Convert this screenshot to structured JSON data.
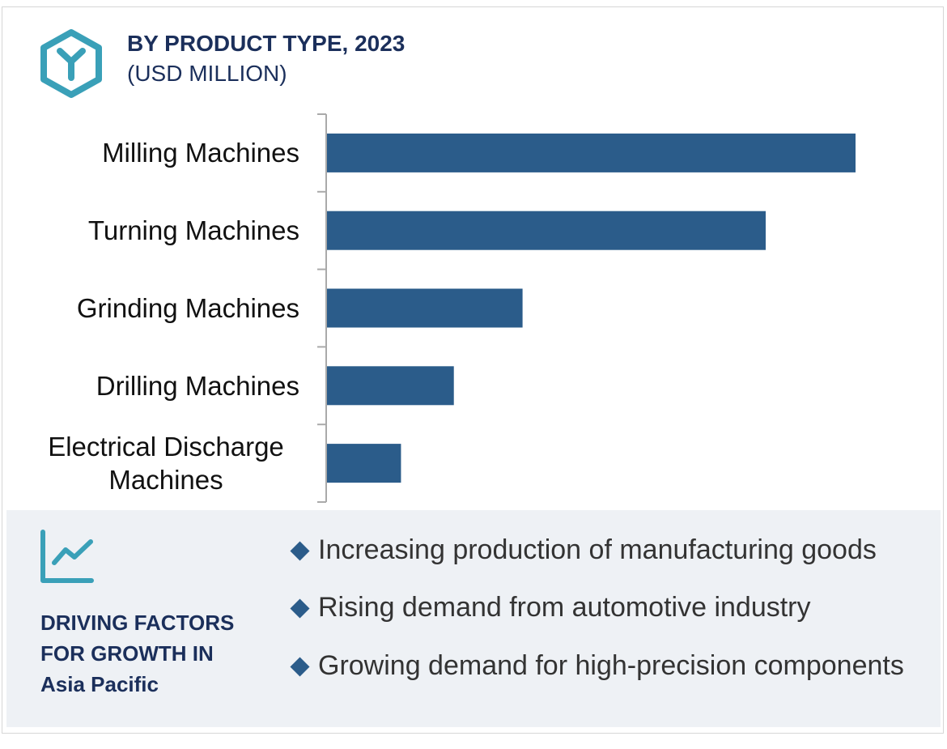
{
  "chart_data": {
    "type": "bar",
    "orientation": "horizontal",
    "title": "BY PRODUCT TYPE, 2023",
    "subtitle": "(USD MILLION)",
    "categories": [
      "Milling Machines",
      "Turning Machines",
      "Grinding Machines",
      "Drilling Machines",
      "Electrical Discharge Machines"
    ],
    "values": [
      100,
      83,
      37,
      24,
      14
    ],
    "color": "#2b5c8a"
  },
  "driving_factors": {
    "heading": [
      "DRIVING FACTORS",
      "FOR GROWTH IN",
      "Asia Pacific"
    ],
    "items": [
      "Increasing production of manufacturing goods",
      "Rising demand from automotive industry",
      "Growing demand for high-precision components"
    ]
  }
}
